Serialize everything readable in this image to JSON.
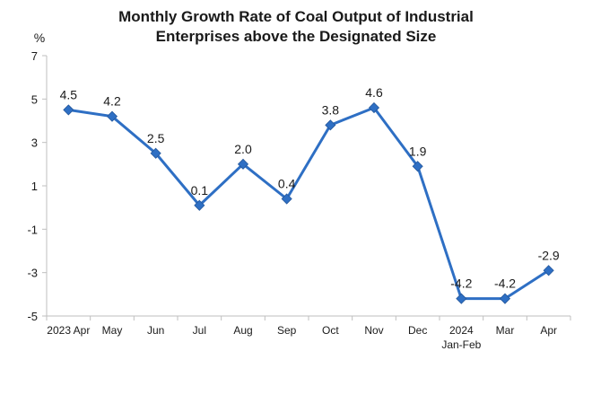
{
  "chart_data": {
    "type": "line",
    "title": [
      "Monthly Growth Rate of Coal Output of Industrial",
      "Enterprises above the Designated Size"
    ],
    "ylabel": "%",
    "ylim": [
      -5,
      7
    ],
    "yticks": [
      7,
      5,
      3,
      1,
      -1,
      -3,
      -5
    ],
    "categories": [
      [
        "2023 Apr"
      ],
      [
        "May"
      ],
      [
        "Jun"
      ],
      [
        "Jul"
      ],
      [
        "Aug"
      ],
      [
        "Sep"
      ],
      [
        "Oct"
      ],
      [
        "Nov"
      ],
      [
        "Dec"
      ],
      [
        "2024",
        "Jan-Feb"
      ],
      [
        "Mar"
      ],
      [
        "Apr"
      ]
    ],
    "series": [
      {
        "values": [
          4.5,
          4.2,
          2.5,
          0.1,
          2.0,
          0.4,
          3.8,
          4.6,
          1.9,
          -4.2,
          -4.2,
          -2.9
        ],
        "labels": [
          "4.5",
          "4.2",
          "2.5",
          "0.1",
          "2.0",
          "0.4",
          "3.8",
          "4.6",
          "1.9",
          "-4.2",
          "-4.2",
          "-2.9"
        ],
        "color": "#2e6fc4"
      }
    ],
    "grid": false,
    "legend": "none"
  }
}
